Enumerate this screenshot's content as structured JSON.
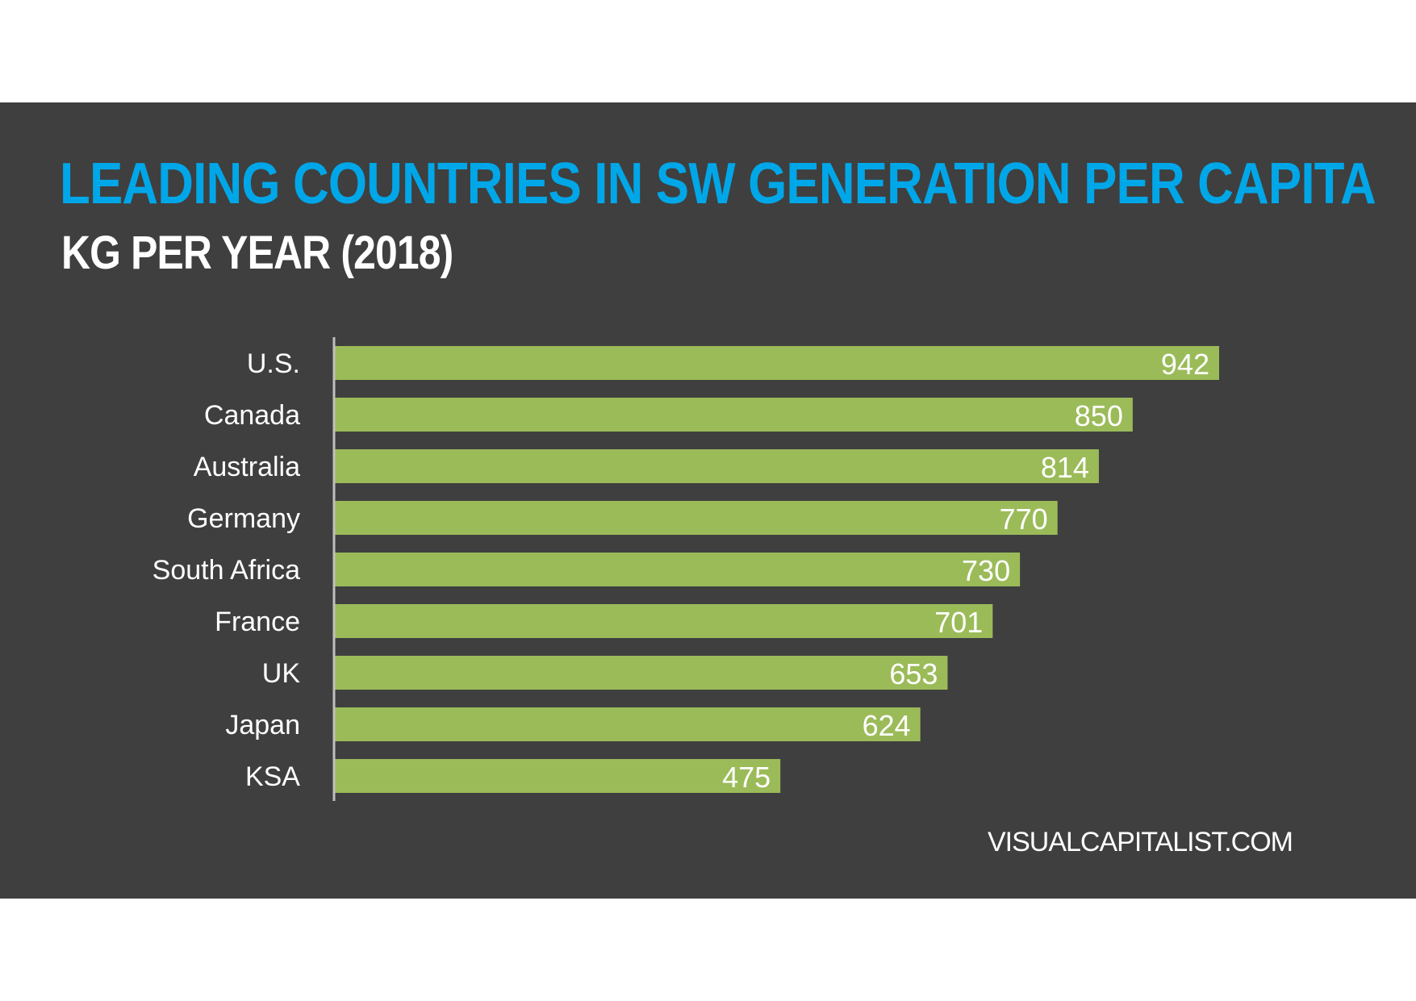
{
  "header": {
    "title": "LEADING COUNTRIES IN SW GENERATION PER CAPITA",
    "subtitle": "KG PER YEAR (2018)"
  },
  "footer": {
    "credit": "VISUALCAPITALIST.COM"
  },
  "colors": {
    "panel_background": "#3f3f3f",
    "title": "#00a7e8",
    "bar": "#9bbb59",
    "axis": "#bfbfbf",
    "text": "#ffffff"
  },
  "chart_data": {
    "type": "bar",
    "orientation": "horizontal",
    "title": "LEADING COUNTRIES IN SW GENERATION PER CAPITA",
    "subtitle": "KG PER YEAR (2018)",
    "categories": [
      "U.S.",
      "Canada",
      "Australia",
      "Germany",
      "South Africa",
      "France",
      "UK",
      "Japan",
      "KSA"
    ],
    "values": [
      942,
      850,
      814,
      770,
      730,
      701,
      653,
      624,
      475
    ],
    "data_labels": [
      "942",
      "850",
      "814",
      "770",
      "730",
      "701",
      "653",
      "624",
      "475"
    ],
    "xlim": [
      0,
      942
    ],
    "grid": false,
    "legend": "none"
  }
}
